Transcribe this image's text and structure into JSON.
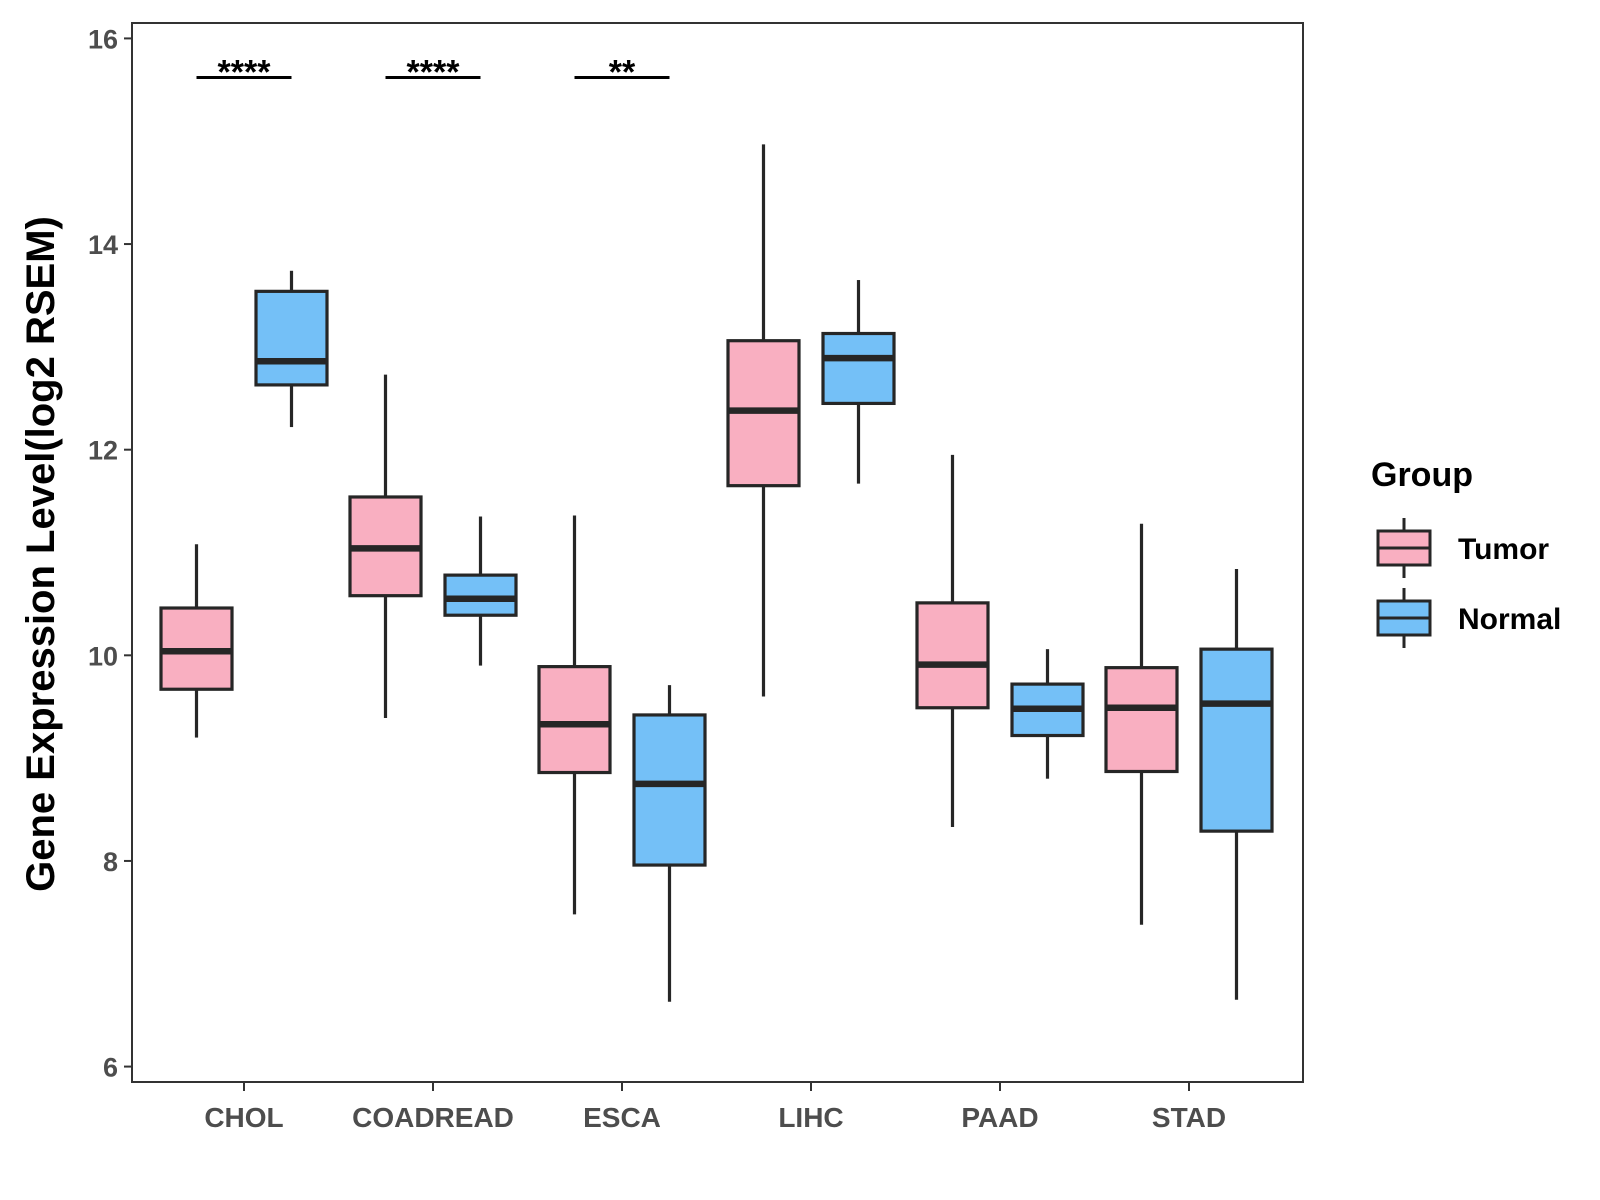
{
  "chart_data": {
    "type": "boxplot",
    "title": "",
    "xlabel": "",
    "ylabel": "Gene Expression Level(log2 RSEM)",
    "ylim": [
      5.85,
      16.15
    ],
    "yticks": [
      6,
      8,
      10,
      12,
      14,
      16
    ],
    "categories": [
      "CHOL",
      "COADREAD",
      "ESCA",
      "LIHC",
      "PAAD",
      "STAD"
    ],
    "legend": {
      "title": "Group",
      "position": "right",
      "entries": [
        {
          "name": "Tumor",
          "color": "#F9AFC1"
        },
        {
          "name": "Normal",
          "color": "#74C0F7"
        }
      ]
    },
    "series": [
      {
        "name": "Tumor",
        "color": "#F9AFC1",
        "boxes": [
          {
            "category": "CHOL",
            "min": 9.2,
            "q1": 9.67,
            "median": 10.04,
            "q3": 10.46,
            "max": 11.08
          },
          {
            "category": "COADREAD",
            "min": 9.39,
            "q1": 10.58,
            "median": 11.04,
            "q3": 11.54,
            "max": 12.73
          },
          {
            "category": "ESCA",
            "min": 7.48,
            "q1": 8.86,
            "median": 9.33,
            "q3": 9.89,
            "max": 11.36
          },
          {
            "category": "LIHC",
            "min": 9.6,
            "q1": 11.65,
            "median": 12.38,
            "q3": 13.06,
            "max": 14.97
          },
          {
            "category": "PAAD",
            "min": 8.33,
            "q1": 9.49,
            "median": 9.91,
            "q3": 10.51,
            "max": 11.95
          },
          {
            "category": "STAD",
            "min": 7.38,
            "q1": 8.87,
            "median": 9.49,
            "q3": 9.88,
            "max": 11.28
          }
        ]
      },
      {
        "name": "Normal",
        "color": "#74C0F7",
        "boxes": [
          {
            "category": "CHOL",
            "min": 12.22,
            "q1": 12.63,
            "median": 12.86,
            "q3": 13.54,
            "max": 13.74
          },
          {
            "category": "COADREAD",
            "min": 9.9,
            "q1": 10.39,
            "median": 10.55,
            "q3": 10.78,
            "max": 11.35
          },
          {
            "category": "ESCA",
            "min": 6.63,
            "q1": 7.96,
            "median": 8.75,
            "q3": 9.42,
            "max": 9.71
          },
          {
            "category": "LIHC",
            "min": 11.67,
            "q1": 12.45,
            "median": 12.89,
            "q3": 13.13,
            "max": 13.65
          },
          {
            "category": "PAAD",
            "min": 8.8,
            "q1": 9.22,
            "median": 9.48,
            "q3": 9.72,
            "max": 10.06
          },
          {
            "category": "STAD",
            "min": 6.65,
            "q1": 8.29,
            "median": 9.53,
            "q3": 10.06,
            "max": 10.84
          }
        ]
      }
    ],
    "significance": [
      {
        "category": "CHOL",
        "label": "****",
        "y": 15.62
      },
      {
        "category": "COADREAD",
        "label": "****",
        "y": 15.62
      },
      {
        "category": "ESCA",
        "label": "**",
        "y": 15.62
      }
    ]
  }
}
